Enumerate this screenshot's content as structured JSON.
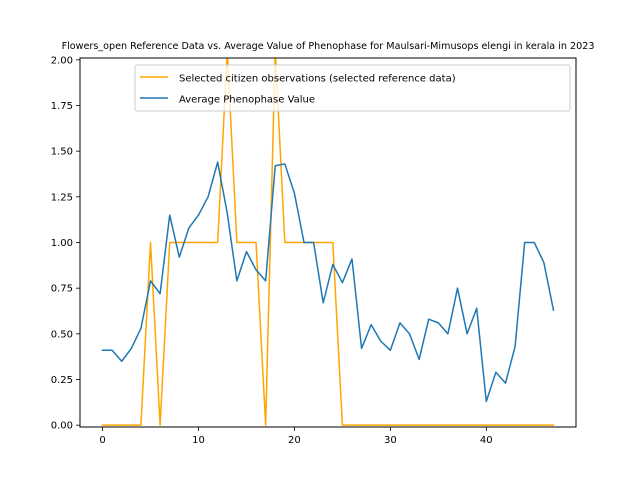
{
  "chart_data": {
    "type": "line",
    "title": "Flowers_open Reference Data vs. Average Value of Phenophase for Maulsari-Mimusops elengi in kerala in 2023",
    "xlabel": "",
    "ylabel": "",
    "xlim": [
      -2.35,
      49.35
    ],
    "ylim": [
      -0.01,
      2.01
    ],
    "xticks": [
      0,
      10,
      20,
      30,
      40
    ],
    "yticks": [
      0.0,
      0.25,
      0.5,
      0.75,
      1.0,
      1.25,
      1.5,
      1.75,
      2.0
    ],
    "ytick_labels": [
      "0.00",
      "0.25",
      "0.50",
      "0.75",
      "1.00",
      "1.25",
      "1.50",
      "1.75",
      "2.00"
    ],
    "grid": false,
    "legend_position": "top-right",
    "series": [
      {
        "name": "Selected citizen observations (selected reference data)",
        "color": "#ffa500",
        "x": [
          0,
          1,
          2,
          3,
          4,
          5,
          6,
          7,
          8,
          9,
          10,
          11,
          12,
          13,
          14,
          15,
          16,
          17,
          18,
          19,
          20,
          21,
          22,
          23,
          24,
          25,
          26,
          27,
          28,
          29,
          30,
          31,
          32,
          33,
          34,
          35,
          36,
          37,
          38,
          39,
          40,
          41,
          42,
          43,
          44,
          45,
          46,
          47
        ],
        "values": [
          0,
          0,
          0,
          0,
          0,
          1,
          0,
          1,
          1,
          1,
          1,
          1,
          1,
          2.05,
          1,
          1,
          1,
          0,
          2.05,
          1,
          1,
          1,
          1,
          1,
          1,
          0,
          0,
          0,
          0,
          0,
          0,
          0,
          0,
          0,
          0,
          0,
          0,
          0,
          0,
          0,
          0,
          0,
          0,
          0,
          0,
          0,
          0,
          0
        ]
      },
      {
        "name": "Average Phenophase Value",
        "color": "#1f77b4",
        "x": [
          0,
          1,
          2,
          3,
          4,
          5,
          6,
          7,
          8,
          9,
          10,
          11,
          12,
          13,
          14,
          15,
          16,
          17,
          18,
          19,
          20,
          21,
          22,
          23,
          24,
          25,
          26,
          27,
          28,
          29,
          30,
          31,
          32,
          33,
          34,
          35,
          36,
          37,
          38,
          39,
          40,
          41,
          42,
          43,
          44,
          45,
          46,
          47
        ],
        "values": [
          0.41,
          0.41,
          0.35,
          0.42,
          0.53,
          0.79,
          0.72,
          1.15,
          0.92,
          1.08,
          1.15,
          1.25,
          1.44,
          1.16,
          0.79,
          0.95,
          0.85,
          0.79,
          1.42,
          1.43,
          1.27,
          1.0,
          1.0,
          0.67,
          0.88,
          0.78,
          0.91,
          0.42,
          0.55,
          0.46,
          0.41,
          0.56,
          0.5,
          0.36,
          0.58,
          0.56,
          0.5,
          0.75,
          0.5,
          0.64,
          0.13,
          0.29,
          0.23,
          0.43,
          1.0,
          1.0,
          0.89,
          0.63
        ]
      }
    ]
  }
}
